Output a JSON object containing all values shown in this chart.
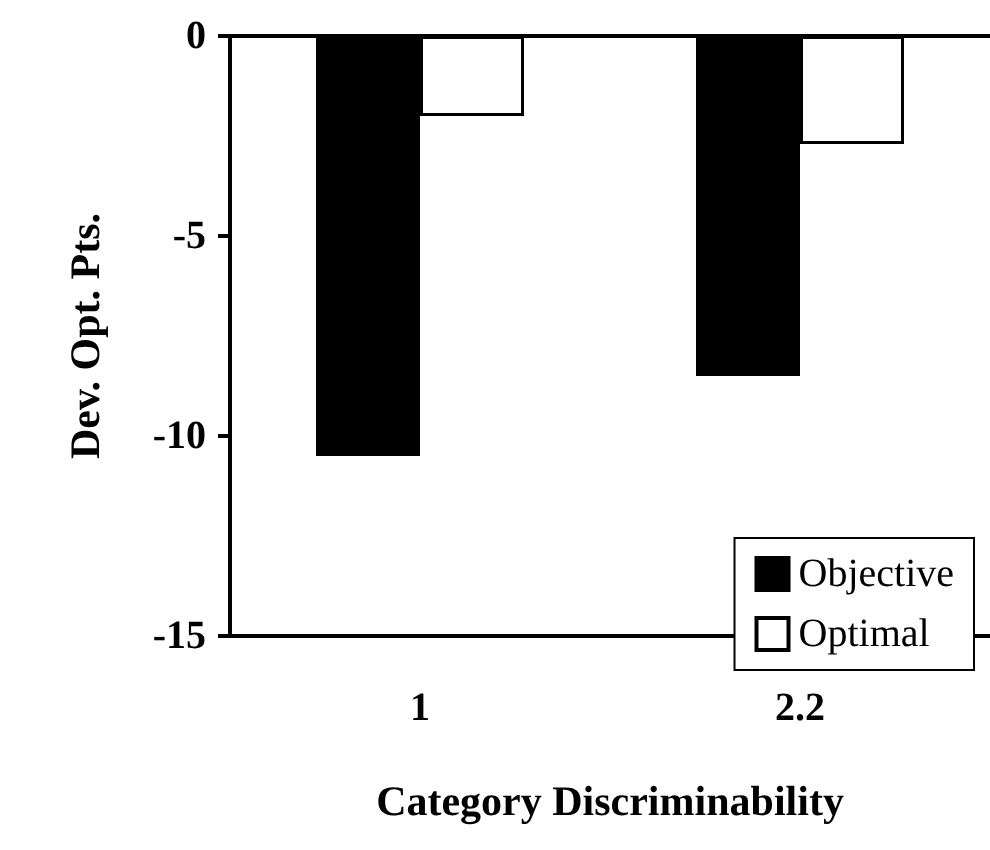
{
  "chart_data": {
    "type": "bar",
    "xlabel": "Category Discriminability",
    "ylabel": "Dev. Opt. Pts.",
    "categories": [
      "1",
      "2.2"
    ],
    "series": [
      {
        "name": "Objective",
        "color": "#000000",
        "values": [
          -10.5,
          -8.5
        ]
      },
      {
        "name": "Optimal",
        "color": "#ffffff",
        "values": [
          -2.0,
          -2.7
        ]
      }
    ],
    "ylim": [
      -15,
      0
    ],
    "yticks": [
      -15,
      -10,
      -5,
      0
    ],
    "grid": false,
    "legend": "bottom right"
  }
}
